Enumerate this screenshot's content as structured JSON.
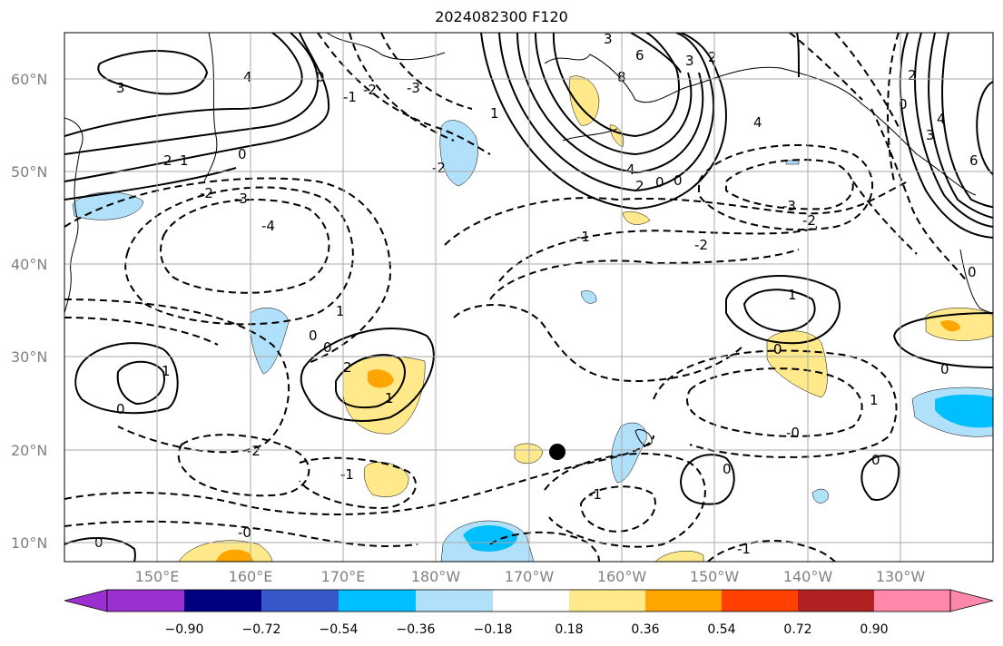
{
  "title": "2024082300 F120",
  "lat_labels": [
    "60°N",
    "50°N",
    "40°N",
    "30°N",
    "20°N",
    "10°N"
  ],
  "lon_labels": [
    "150°E",
    "160°E",
    "170°E",
    "180°W",
    "170°W",
    "160°W",
    "150°W",
    "140°W",
    "130°W"
  ],
  "colorbar": {
    "labels": [
      "−0.90",
      "−0.72",
      "−0.54",
      "−0.36",
      "−0.18",
      "0.18",
      "0.36",
      "0.54",
      "0.72",
      "0.90"
    ],
    "colors": [
      "#9b30d0",
      "#000080",
      "#3658c8",
      "#00bfff",
      "#b0e0fa",
      "#ffffff",
      "#ffe98a",
      "#ffa500",
      "#ff4000",
      "#b22222",
      "#ff88aa"
    ]
  },
  "contour_labels": [
    "-3",
    "-2",
    "-1",
    "0",
    "1",
    "2",
    "3",
    "4",
    "5",
    "6",
    "-4"
  ],
  "marker": "storm-center-dot"
}
